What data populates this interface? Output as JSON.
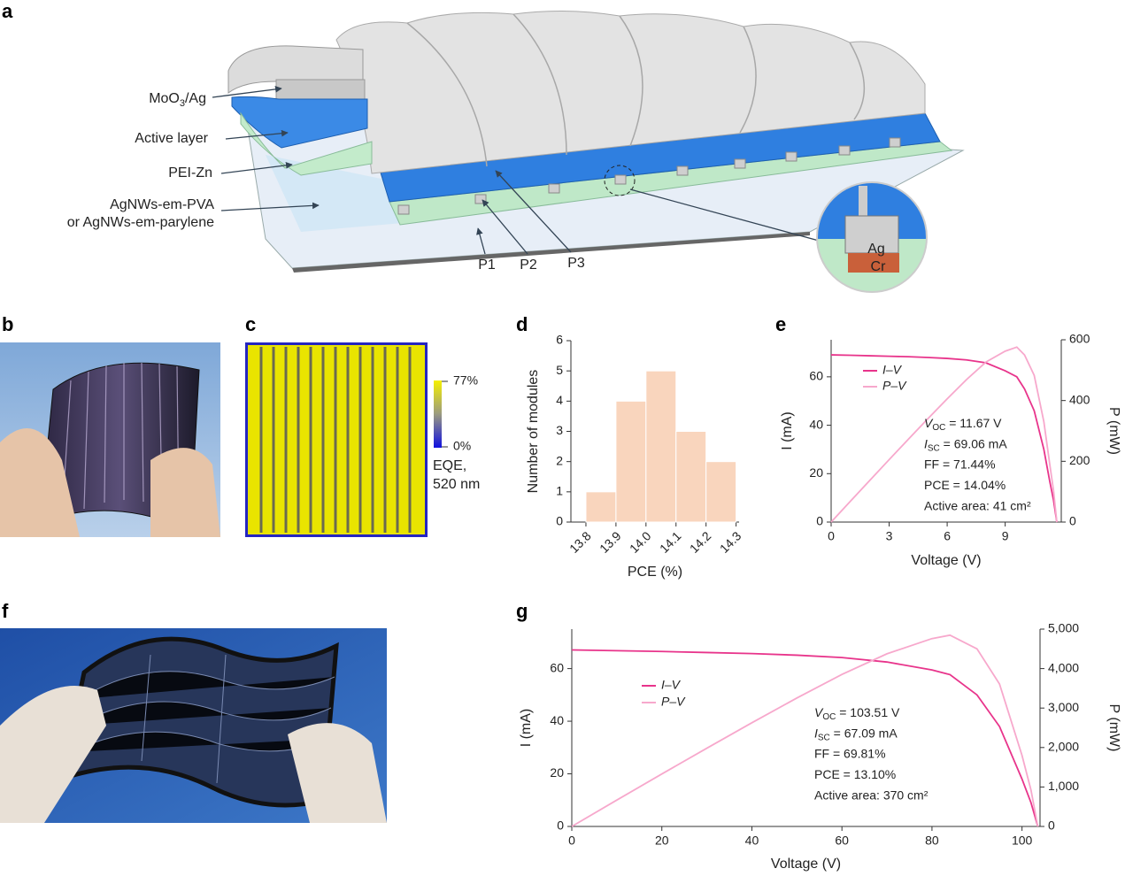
{
  "panel_labels": [
    "a",
    "b",
    "c",
    "d",
    "e",
    "f",
    "g"
  ],
  "diagram": {
    "layers": [
      {
        "main": "MoO",
        "sub": "3",
        "rest": "/Ag"
      },
      "Active layer",
      "PEI-Zn",
      "AgNWs-em-PVA",
      "or AgNWs-em-parylene"
    ],
    "scribes": [
      "P1",
      "P2",
      "P3"
    ],
    "inset": [
      "Ag",
      "Cr"
    ]
  },
  "eqe_map": {
    "max_label": "77%",
    "min_label": "0%",
    "caption": [
      "EQE,",
      "520 nm"
    ]
  },
  "chart_data": [
    {
      "type": "histogram",
      "bins": [
        13.8,
        13.9,
        14.0,
        14.1,
        14.2,
        14.3
      ],
      "values": [
        1,
        4,
        5,
        3,
        2
      ],
      "color": "#f9d5bd",
      "xlim": [
        13.75,
        14.31
      ],
      "xticks": [
        13.8,
        13.9,
        {
          "value": 14.0,
          "label": "14.0"
        },
        14.1,
        14.2,
        14.3
      ],
      "ylim": [
        0,
        6
      ],
      "yticks": [
        0,
        1,
        2,
        3,
        4,
        5,
        6
      ],
      "xlabel": "PCE (%)",
      "ylabel": "Number of modules"
    },
    {
      "type": "line",
      "x": [
        0,
        1,
        2,
        3,
        4,
        5,
        6,
        7,
        8,
        9,
        9.6,
        10,
        10.5,
        11,
        11.3,
        11.5,
        11.67
      ],
      "series": [
        {
          "name": "I–V",
          "color": "#e8348b",
          "values": [
            69.06,
            68.9,
            68.7,
            68.5,
            68.3,
            68,
            67.6,
            67,
            65.8,
            62.5,
            60,
            55,
            46,
            30,
            17,
            9,
            0
          ]
        },
        {
          "name": "P–V",
          "color": "#f7a8cc",
          "axis": "y2",
          "values": [
            0,
            68.9,
            137.4,
            205.5,
            273.2,
            340,
            405.6,
            469,
            526.4,
            562.5,
            576,
            550,
            483,
            330,
            192.1,
            103.5,
            0
          ]
        }
      ],
      "xlim": [
        0,
        11.9
      ],
      "xticks": [
        0,
        3,
        6,
        9
      ],
      "ylim": [
        0,
        75.3
      ],
      "yticks": [
        0,
        20,
        40,
        60
      ],
      "y2lim": [
        0,
        600
      ],
      "y2ticks": [
        0,
        200,
        400,
        600
      ],
      "xlabel": "Voltage (V)",
      "ylabel": "I (mA)",
      "y2label": "P (mW)",
      "annotations": [
        {
          "main": "V",
          "sub": "OC",
          "rest": " = 11.67 V"
        },
        {
          "main": "I",
          "sub": "SC",
          "rest": " = 69.06 mA"
        },
        "FF = 71.44%",
        "PCE = 14.04%",
        "Active area: 41 cm²"
      ]
    },
    {
      "type": "line",
      "x": [
        0,
        10,
        20,
        30,
        40,
        50,
        60,
        70,
        80,
        84,
        90,
        95,
        100,
        102,
        103.51
      ],
      "series": [
        {
          "name": "I–V",
          "color": "#e8348b",
          "values": [
            67.09,
            66.8,
            66.5,
            66.1,
            65.7,
            65.1,
            64.2,
            62.5,
            59.5,
            57.7,
            50,
            38,
            18,
            9,
            0
          ]
        },
        {
          "name": "P–V",
          "color": "#f7a8cc",
          "axis": "y2",
          "values": [
            0,
            668,
            1330,
            1983,
            2628,
            3255,
            3852,
            4375,
            4760,
            4846.8,
            4500,
            3610,
            1800,
            918,
            0
          ]
        }
      ],
      "xlim": [
        0,
        104
      ],
      "xticks": [
        0,
        20,
        40,
        60,
        80,
        100
      ],
      "ylim": [
        0,
        75
      ],
      "yticks": [
        0,
        20,
        40,
        60
      ],
      "y2lim": [
        0,
        5000
      ],
      "y2ticks": [
        0,
        {
          "value": 1000,
          "label": "1,000"
        },
        {
          "value": 2000,
          "label": "2,000"
        },
        {
          "value": 3000,
          "label": "3,000"
        },
        {
          "value": 4000,
          "label": "4,000"
        },
        {
          "value": 5000,
          "label": "5,000"
        }
      ],
      "xlabel": "Voltage (V)",
      "ylabel": "I (mA)",
      "y2label": "P (mW)",
      "annotations": [
        {
          "main": "V",
          "sub": "OC",
          "rest": " = 103.51 V"
        },
        {
          "main": "I",
          "sub": "SC",
          "rest": " = 67.09 mA"
        },
        "FF = 69.81%",
        "PCE = 13.10%",
        "Active area: 370 cm²"
      ]
    }
  ]
}
